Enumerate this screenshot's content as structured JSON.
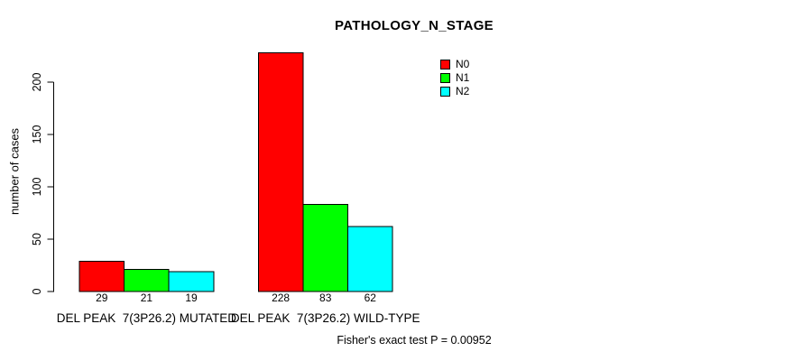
{
  "chart_data": {
    "type": "bar",
    "title": "PATHOLOGY_N_STAGE",
    "ylabel": "number of cases",
    "xlabel": "",
    "categories": [
      "DEL PEAK  7(3P26.2) MUTATED",
      "DEL PEAK  7(3P26.2) WILD-TYPE"
    ],
    "series": [
      {
        "name": "N0",
        "color": "#ff0000",
        "values": [
          29,
          228
        ]
      },
      {
        "name": "N1",
        "color": "#00ff00",
        "values": [
          21,
          83
        ]
      },
      {
        "name": "N2",
        "color": "#00ffff",
        "values": [
          19,
          62
        ]
      }
    ],
    "bar_value_labels": [
      [
        "29",
        "21",
        "19"
      ],
      [
        "228",
        "83",
        "62"
      ]
    ],
    "y_ticks": [
      0,
      50,
      100,
      150,
      200
    ],
    "ylim": [
      0,
      228
    ],
    "grid": false,
    "legend_position": "top-right",
    "bar_border_color": "#000000",
    "axis_color": "#000000",
    "background_color": "#ffffff",
    "footnote": "Fisher's exact test P = 0.00952"
  }
}
